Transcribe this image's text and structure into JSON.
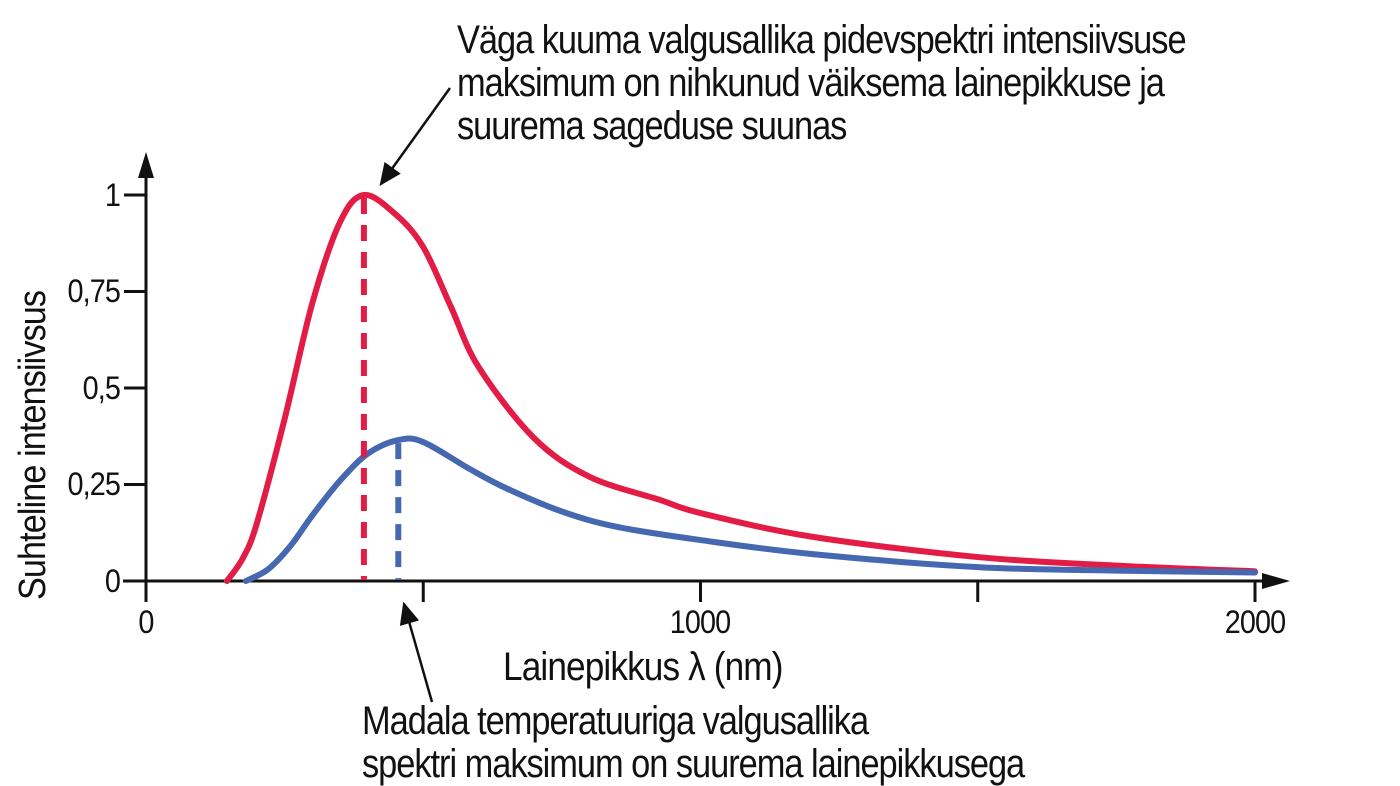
{
  "annotations": {
    "top": [
      "Väga kuuma valgusallika pidevspektri intensiivsuse",
      "maksimum on nihkunud väiksema lainepikkuse ja",
      "suurema sageduse suunas"
    ],
    "bottom": [
      "Madala temperatuuriga valgusallika",
      "spektri maksimum on suurema lainepikkusega"
    ]
  },
  "axes": {
    "xlabel": "Lainepikkus λ (nm)",
    "ylabel": "Suhteline intensiivsus",
    "x_tick_labels": [
      "0",
      "1000",
      "2000"
    ],
    "y_tick_labels": [
      "0",
      "0,25",
      "0,5",
      "0,75",
      "1"
    ]
  },
  "colors": {
    "hot": "#e31c45",
    "cool": "#4568b0",
    "axis": "#111111"
  },
  "chart_data": {
    "type": "line",
    "title": "",
    "xlabel": "Lainepikkus λ (nm)",
    "ylabel": "Suhteline intensiivsus",
    "xlim": [
      0,
      2050
    ],
    "ylim": [
      0,
      1.1
    ],
    "x_ticks": [
      0,
      500,
      1000,
      1500,
      2000
    ],
    "x_tick_labels": [
      "0",
      "",
      "1000",
      "",
      "2000"
    ],
    "y_ticks": [
      0,
      0.25,
      0.5,
      0.75,
      1
    ],
    "y_tick_labels": [
      "0",
      "0,25",
      "0,5",
      "0,75",
      "1"
    ],
    "grid": false,
    "legend": null,
    "series": [
      {
        "name": "Väga kuum valgusallikas",
        "color": "#e31c45",
        "x": [
          146,
          175,
          200,
          250,
          300,
          350,
          393,
          450,
          500,
          550,
          600,
          700,
          800,
          927,
          1000,
          1200,
          1500,
          1750,
          2000
        ],
        "y": [
          0.0,
          0.06,
          0.15,
          0.42,
          0.72,
          0.93,
          1.0,
          0.95,
          0.865,
          0.71,
          0.554,
          0.37,
          0.27,
          0.21,
          0.176,
          0.115,
          0.062,
          0.04,
          0.025
        ],
        "peak": {
          "x": 393,
          "y": 1.0
        }
      },
      {
        "name": "Madala temperatuuriga valgusallikas",
        "color": "#4568b0",
        "x": [
          180,
          220,
          260,
          300,
          350,
          400,
          455,
          500,
          584,
          650,
          750,
          850,
          1000,
          1200,
          1500,
          1750,
          2000
        ],
        "y": [
          0.0,
          0.03,
          0.09,
          0.17,
          0.26,
          0.33,
          0.365,
          0.36,
          0.29,
          0.24,
          0.18,
          0.14,
          0.106,
          0.07,
          0.036,
          0.027,
          0.022
        ],
        "peak": {
          "x": 455,
          "y": 0.365
        }
      }
    ],
    "annotations": [
      {
        "text": "Väga kuuma valgusallika pidevspektri intensiivsuse maksimum on nihkunud väiksema lainepikkuse ja suurema sageduse suunas",
        "points_to": {
          "x": 393,
          "y": 1.0
        }
      },
      {
        "text": "Madala temperatuuriga valgusallika spektri maksimum on suurema lainepikkusega",
        "points_to": {
          "x": 455,
          "y": 0
        }
      }
    ]
  }
}
